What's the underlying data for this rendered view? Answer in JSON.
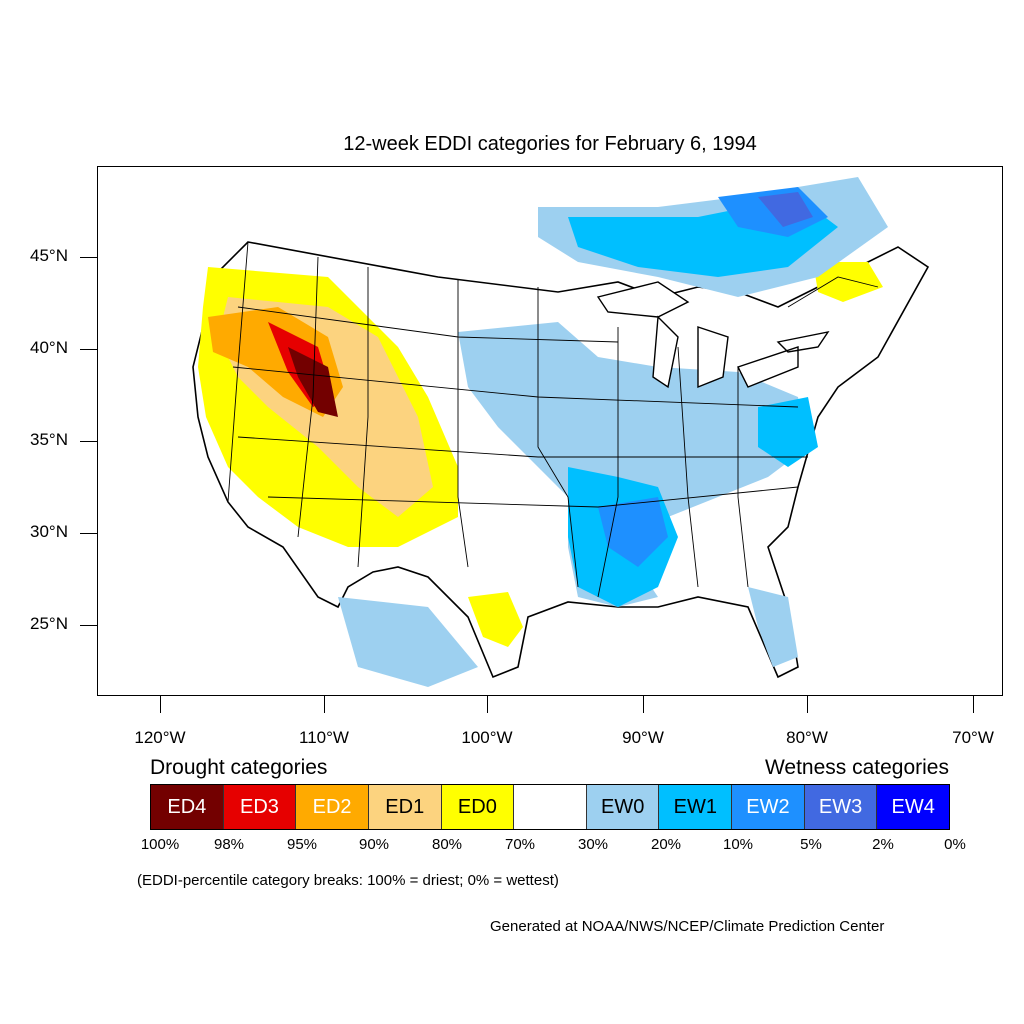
{
  "title": "12-week EDDI categories for February 6, 1994",
  "axes": {
    "lat_labels": [
      "45°N",
      "40°N",
      "35°N",
      "30°N",
      "25°N"
    ],
    "lon_labels": [
      "120°W",
      "110°W",
      "100°W",
      "90°W",
      "80°W",
      "70°W"
    ]
  },
  "legend": {
    "drought_title": "Drought categories",
    "wetness_title": "Wetness categories",
    "categories": [
      {
        "label": "ED4",
        "color": "#730000",
        "text_color": "#ffffff"
      },
      {
        "label": "ED3",
        "color": "#e60000",
        "text_color": "#ffffff"
      },
      {
        "label": "ED2",
        "color": "#ffaa00",
        "text_color": "#ffffff"
      },
      {
        "label": "ED1",
        "color": "#fcd37f",
        "text_color": "#000000"
      },
      {
        "label": "ED0",
        "color": "#ffff00",
        "text_color": "#000000"
      },
      {
        "label": "",
        "color": "#ffffff",
        "text_color": "#000000"
      },
      {
        "label": "EW0",
        "color": "#9dd0f0",
        "text_color": "#000000"
      },
      {
        "label": "EW1",
        "color": "#00bfff",
        "text_color": "#000000"
      },
      {
        "label": "EW2",
        "color": "#1e90ff",
        "text_color": "#ffffff"
      },
      {
        "label": "EW3",
        "color": "#4169e1",
        "text_color": "#ffffff"
      },
      {
        "label": "EW4",
        "color": "#0000ff",
        "text_color": "#ffffff"
      }
    ],
    "breaks": [
      "100%",
      "98%",
      "95%",
      "90%",
      "80%",
      "70%",
      "30%",
      "20%",
      "10%",
      "5%",
      "2%",
      "0%"
    ]
  },
  "note": "(EDDI-percentile category breaks: 100% = driest; 0% = wettest)",
  "credit": "Generated at NOAA/NWS/NCEP/Climate Prediction Center"
}
